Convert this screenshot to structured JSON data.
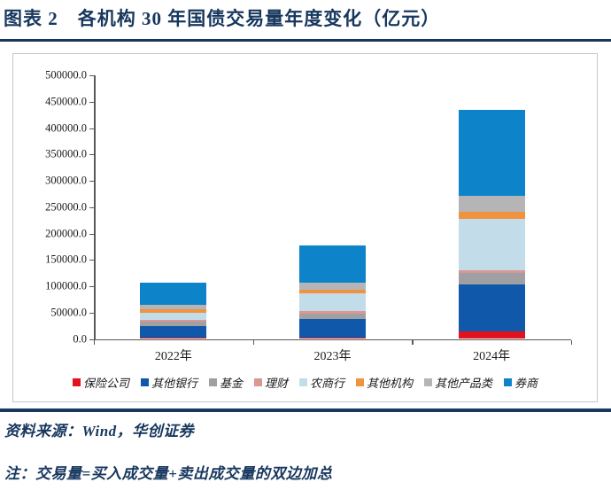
{
  "title": "图表 2　各机构 30 年国债交易量年度变化（亿元）",
  "footer": {
    "source": "资料来源：Wind，华创证券",
    "note": "注：交易量=买入成交量+卖出成交量的双边加总"
  },
  "colors": {
    "accent_navy": "#17375e",
    "axis": "#595959",
    "frame_border": "#c6c6c6"
  },
  "chart_data": {
    "type": "bar",
    "stacked": true,
    "title": "各机构30年国债交易量年度变化（亿元）",
    "xlabel": "",
    "ylabel": "",
    "categories": [
      "2022年",
      "2023年",
      "2024年"
    ],
    "series": [
      {
        "name": "保险公司",
        "color": "#e1131f",
        "values": [
          3000,
          2500,
          15000
        ]
      },
      {
        "name": "其他银行",
        "color": "#0f58aa",
        "values": [
          22000,
          35000,
          89000
        ]
      },
      {
        "name": "基金",
        "color": "#a0a0a2",
        "values": [
          7000,
          11000,
          22000
        ]
      },
      {
        "name": "理财",
        "color": "#d99795",
        "values": [
          4000,
          4000,
          4000
        ]
      },
      {
        "name": "农商行",
        "color": "#c3dcea",
        "values": [
          14000,
          34000,
          98000
        ]
      },
      {
        "name": "其他机构",
        "color": "#f0933f",
        "values": [
          6000,
          7000,
          13000
        ]
      },
      {
        "name": "其他产品类",
        "color": "#b5b5b7",
        "values": [
          9000,
          12500,
          30000
        ]
      },
      {
        "name": "券商",
        "color": "#0d84c9",
        "values": [
          42000,
          72000,
          164000
        ]
      }
    ],
    "totals": [
      107000,
      178000,
      435000
    ],
    "ylim": [
      0,
      500000
    ],
    "ytick_step": 50000,
    "ytick_format": "one_decimal",
    "grid": false,
    "legend_position": "bottom"
  }
}
